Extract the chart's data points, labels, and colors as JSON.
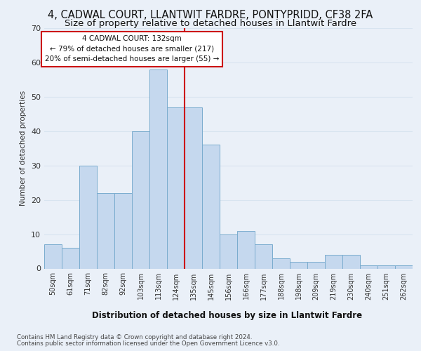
{
  "title_line1": "4, CADWAL COURT, LLANTWIT FARDRE, PONTYPRIDD, CF38 2FA",
  "title_line2": "Size of property relative to detached houses in Llantwit Fardre",
  "xlabel": "Distribution of detached houses by size in Llantwit Fardre",
  "ylabel": "Number of detached properties",
  "footnote1": "Contains HM Land Registry data © Crown copyright and database right 2024.",
  "footnote2": "Contains public sector information licensed under the Open Government Licence v3.0.",
  "bar_labels": [
    "50sqm",
    "61sqm",
    "71sqm",
    "82sqm",
    "92sqm",
    "103sqm",
    "113sqm",
    "124sqm",
    "135sqm",
    "145sqm",
    "156sqm",
    "166sqm",
    "177sqm",
    "188sqm",
    "198sqm",
    "209sqm",
    "219sqm",
    "230sqm",
    "240sqm",
    "251sqm",
    "262sqm"
  ],
  "bar_values": [
    7,
    6,
    30,
    22,
    22,
    40,
    58,
    47,
    47,
    36,
    10,
    11,
    7,
    3,
    2,
    2,
    4,
    4,
    1,
    1,
    1
  ],
  "bar_color": "#c5d8ee",
  "bar_edgecolor": "#7aacce",
  "vline_color": "#cc0000",
  "annotation_text": "4 CADWAL COURT: 132sqm\n← 79% of detached houses are smaller (217)\n20% of semi-detached houses are larger (55) →",
  "annotation_box_color": "#ffffff",
  "annotation_box_edgecolor": "#cc0000",
  "ylim": [
    0,
    70
  ],
  "yticks": [
    0,
    10,
    20,
    30,
    40,
    50,
    60,
    70
  ],
  "bg_color": "#eaf0f8",
  "grid_color": "#d8e4f0",
  "title_fontsize": 10.5,
  "subtitle_fontsize": 9.5
}
